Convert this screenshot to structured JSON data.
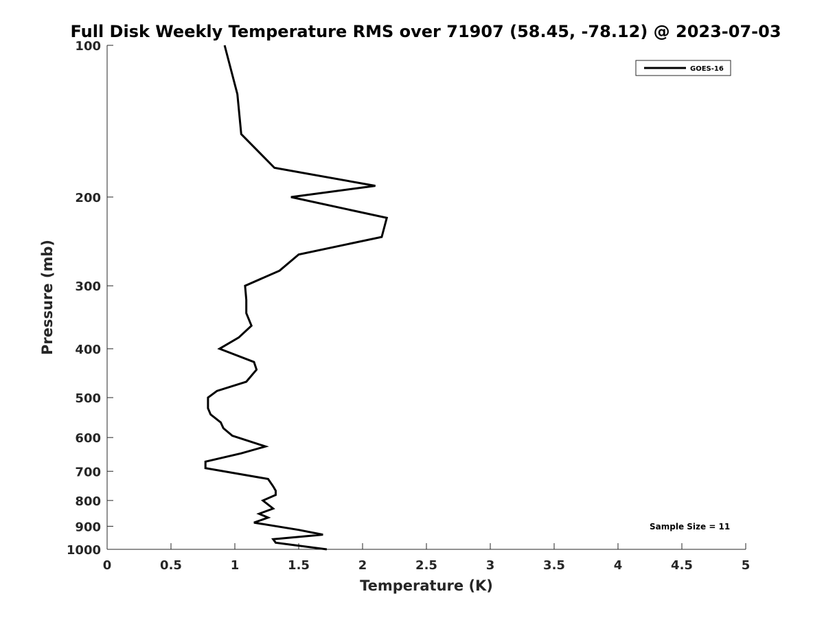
{
  "chart_data": {
    "type": "line",
    "title": "Full Disk Weekly Temperature RMS over 71907 (58.45, -78.12) @ 2023-07-03",
    "xlabel": "Temperature (K)",
    "ylabel": "Pressure (mb)",
    "xlim": [
      0,
      5
    ],
    "ylim": [
      100,
      1000
    ],
    "y_scale": "log",
    "y_reversed": true,
    "x_ticks": [
      "0",
      "0.5",
      "1",
      "1.5",
      "2",
      "2.5",
      "3",
      "3.5",
      "4",
      "4.5",
      "5"
    ],
    "y_ticks": [
      "100",
      "200",
      "300",
      "400",
      "500",
      "600",
      "700",
      "800",
      "900",
      "1000"
    ],
    "grid": false,
    "legend": {
      "position": "top-right",
      "entries": [
        "GOES-16"
      ]
    },
    "annotation": "Sample Size = 11",
    "series": [
      {
        "name": "GOES-16",
        "color": "#000000",
        "points": [
          [
            0.92,
            100
          ],
          [
            1.02,
            125
          ],
          [
            1.05,
            150
          ],
          [
            1.31,
            175
          ],
          [
            2.1,
            190
          ],
          [
            1.44,
            200
          ],
          [
            2.19,
            220
          ],
          [
            2.15,
            240
          ],
          [
            1.5,
            260
          ],
          [
            1.35,
            280
          ],
          [
            1.08,
            300
          ],
          [
            1.09,
            320
          ],
          [
            1.09,
            340
          ],
          [
            1.13,
            360
          ],
          [
            1.03,
            380
          ],
          [
            0.88,
            400
          ],
          [
            1.15,
            425
          ],
          [
            1.17,
            440
          ],
          [
            1.09,
            465
          ],
          [
            0.86,
            485
          ],
          [
            0.79,
            500
          ],
          [
            0.79,
            525
          ],
          [
            0.81,
            540
          ],
          [
            0.89,
            560
          ],
          [
            0.91,
            575
          ],
          [
            0.98,
            595
          ],
          [
            1.24,
            625
          ],
          [
            1.05,
            645
          ],
          [
            0.77,
            670
          ],
          [
            0.77,
            690
          ],
          [
            1.26,
            725
          ],
          [
            1.3,
            750
          ],
          [
            1.32,
            765
          ],
          [
            1.32,
            780
          ],
          [
            1.22,
            800
          ],
          [
            1.3,
            830
          ],
          [
            1.19,
            850
          ],
          [
            1.26,
            865
          ],
          [
            1.15,
            885
          ],
          [
            1.5,
            915
          ],
          [
            1.69,
            935
          ],
          [
            1.3,
            955
          ],
          [
            1.32,
            970
          ],
          [
            1.72,
            1000
          ]
        ]
      }
    ]
  }
}
